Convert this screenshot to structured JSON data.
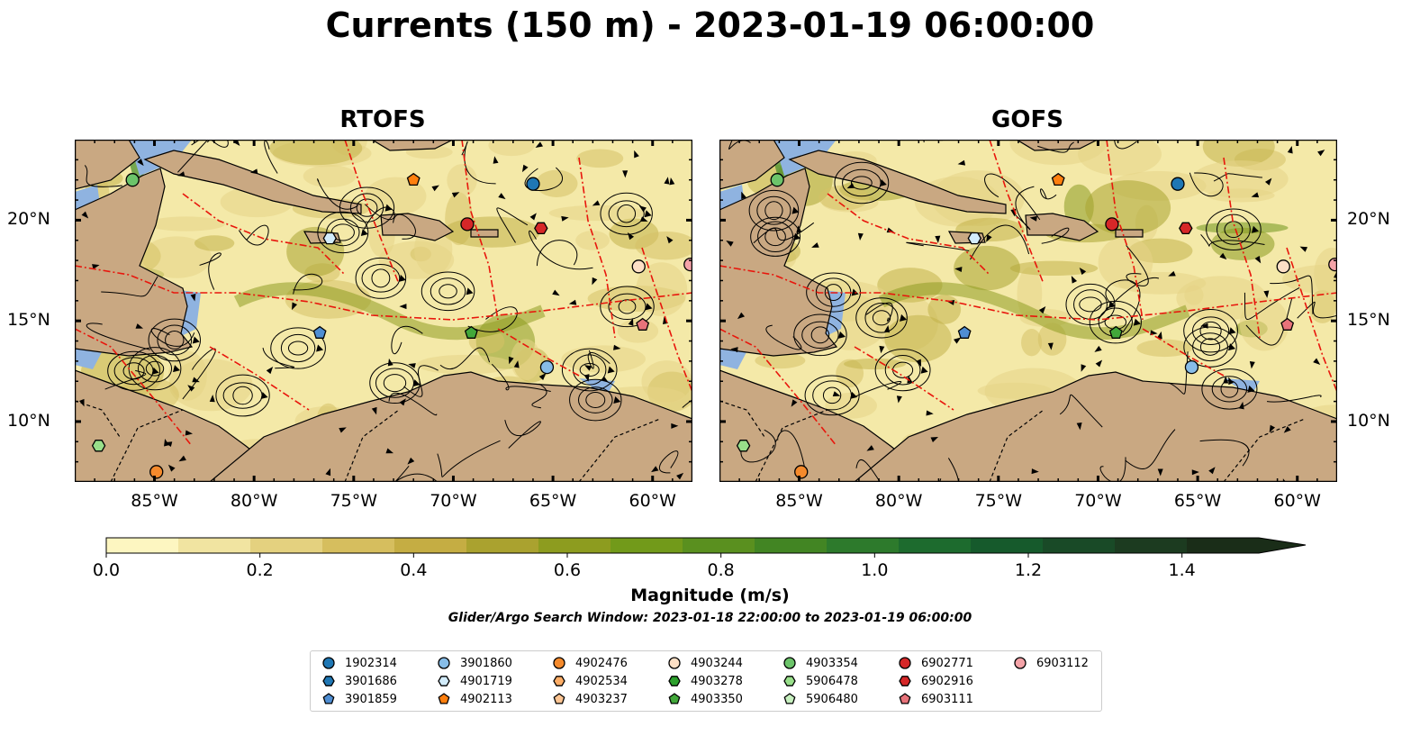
{
  "title": "Currents (150 m) - 2023-01-19 06:00:00",
  "panels": [
    {
      "title": "RTOFS"
    },
    {
      "title": "GOFS"
    }
  ],
  "axes": {
    "lon_labels": [
      "85°W",
      "80°W",
      "75°W",
      "70°W",
      "65°W",
      "60°W"
    ],
    "lat_labels": [
      "20°N",
      "15°N",
      "10°N"
    ],
    "lon_range": [
      -89,
      -58
    ],
    "lat_range": [
      7,
      24
    ]
  },
  "colorbar": {
    "label": "Magnitude (m/s)",
    "ticks": [
      "0.0",
      "0.2",
      "0.4",
      "0.6",
      "0.8",
      "1.0",
      "1.2",
      "1.4"
    ],
    "range": [
      0,
      1.5
    ],
    "colors": [
      "#fdf6c1",
      "#f1e4a1",
      "#e4d17f",
      "#d6be5e",
      "#c5ad43",
      "#aaa22f",
      "#8d9c1f",
      "#729a1a",
      "#5a901f",
      "#428523",
      "#2d7a2c",
      "#1d6b2e",
      "#165a2c",
      "#194a27",
      "#1c3b20",
      "#1a2d18"
    ]
  },
  "search_window": "Glider/Argo Search Window: 2023-01-18 22:00:00 to 2023-01-19 06:00:00",
  "colors": {
    "land": "#c9a882",
    "shelf": "#8fb3e0",
    "eez": "#e8160c",
    "streamline": "#000000"
  },
  "legend": [
    {
      "id": "1902314",
      "shape": "circle",
      "color": "#1f77b4"
    },
    {
      "id": "3901686",
      "shape": "hexagon",
      "color": "#1f77b4"
    },
    {
      "id": "3901859",
      "shape": "pentagon",
      "color": "#4f8ed3"
    },
    {
      "id": "3901860",
      "shape": "circle",
      "color": "#87bde8"
    },
    {
      "id": "4901719",
      "shape": "hexagon",
      "color": "#d2ecfb"
    },
    {
      "id": "4902113",
      "shape": "pentagon",
      "color": "#ff7f0e"
    },
    {
      "id": "4902476",
      "shape": "circle",
      "color": "#f58a2c"
    },
    {
      "id": "4902534",
      "shape": "hexagon",
      "color": "#fdad66"
    },
    {
      "id": "4903237",
      "shape": "pentagon",
      "color": "#fdc593"
    },
    {
      "id": "4903244",
      "shape": "circle",
      "color": "#fde0c6"
    },
    {
      "id": "4903278",
      "shape": "hexagon",
      "color": "#2ca02c"
    },
    {
      "id": "4903350",
      "shape": "pentagon",
      "color": "#42a83a"
    },
    {
      "id": "4903354",
      "shape": "circle",
      "color": "#6cc46a"
    },
    {
      "id": "5906478",
      "shape": "hexagon",
      "color": "#98df8a"
    },
    {
      "id": "5906480",
      "shape": "pentagon",
      "color": "#c7f0bf"
    },
    {
      "id": "6902771",
      "shape": "circle",
      "color": "#d62728"
    },
    {
      "id": "6902916",
      "shape": "hexagon",
      "color": "#d62728"
    },
    {
      "id": "6903111",
      "shape": "pentagon",
      "color": "#e8737a"
    },
    {
      "id": "6903112",
      "shape": "circle",
      "color": "#f4a3a8"
    }
  ],
  "stations": [
    {
      "id": "3901859",
      "lon": -76.7,
      "lat": 14.4
    },
    {
      "id": "4901719",
      "lon": -76.2,
      "lat": 19.1
    },
    {
      "id": "4902113",
      "lon": -72.0,
      "lat": 22.0
    },
    {
      "id": "6902771",
      "lon": -69.3,
      "lat": 19.8
    },
    {
      "id": "1902314",
      "lon": -66.0,
      "lat": 21.8
    },
    {
      "id": "6902916",
      "lon": -65.6,
      "lat": 19.6
    },
    {
      "id": "4903350",
      "lon": -69.1,
      "lat": 14.4
    },
    {
      "id": "3901860",
      "lon": -65.3,
      "lat": 12.7
    },
    {
      "id": "6903111",
      "lon": -60.5,
      "lat": 14.8
    },
    {
      "id": "6903112",
      "lon": -58.1,
      "lat": 17.8
    },
    {
      "id": "4903244",
      "lon": -60.7,
      "lat": 17.7
    },
    {
      "id": "4903354",
      "lon": -86.1,
      "lat": 22.0
    },
    {
      "id": "5906478",
      "lon": -87.8,
      "lat": 8.8
    },
    {
      "id": "4902476",
      "lon": -84.9,
      "lat": 7.5
    }
  ]
}
